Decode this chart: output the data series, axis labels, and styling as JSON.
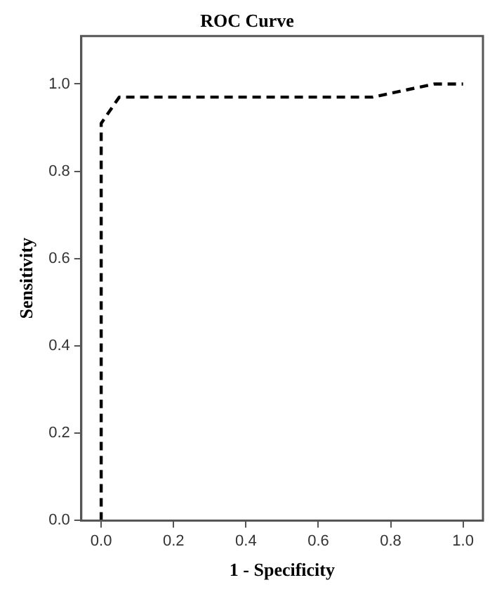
{
  "chart_data": {
    "type": "line",
    "title": "ROC Curve",
    "xlabel": "1 - Specificity",
    "ylabel": "Sensitivity",
    "x": [
      0,
      0,
      0.05,
      0.75,
      0.92,
      1
    ],
    "series": [
      {
        "color": "#000000",
        "values": [
          0,
          0.91,
          0.97,
          0.97,
          1,
          1
        ]
      }
    ],
    "xlim": [
      -0.055,
      1.055
    ],
    "ylim": [
      0,
      1.11
    ],
    "xticks": [
      {
        "value": 0,
        "label": "0.0"
      },
      0.2,
      0.4,
      0.6,
      0.8,
      {
        "value": 1,
        "label": "1.0"
      }
    ],
    "yticks": [
      {
        "value": 0,
        "label": "0.0"
      },
      0.2,
      0.4,
      0.6,
      0.8,
      {
        "value": 1,
        "label": "1.0"
      }
    ],
    "grid": false,
    "legend": false,
    "marker": "none",
    "line_style": "dashed"
  }
}
